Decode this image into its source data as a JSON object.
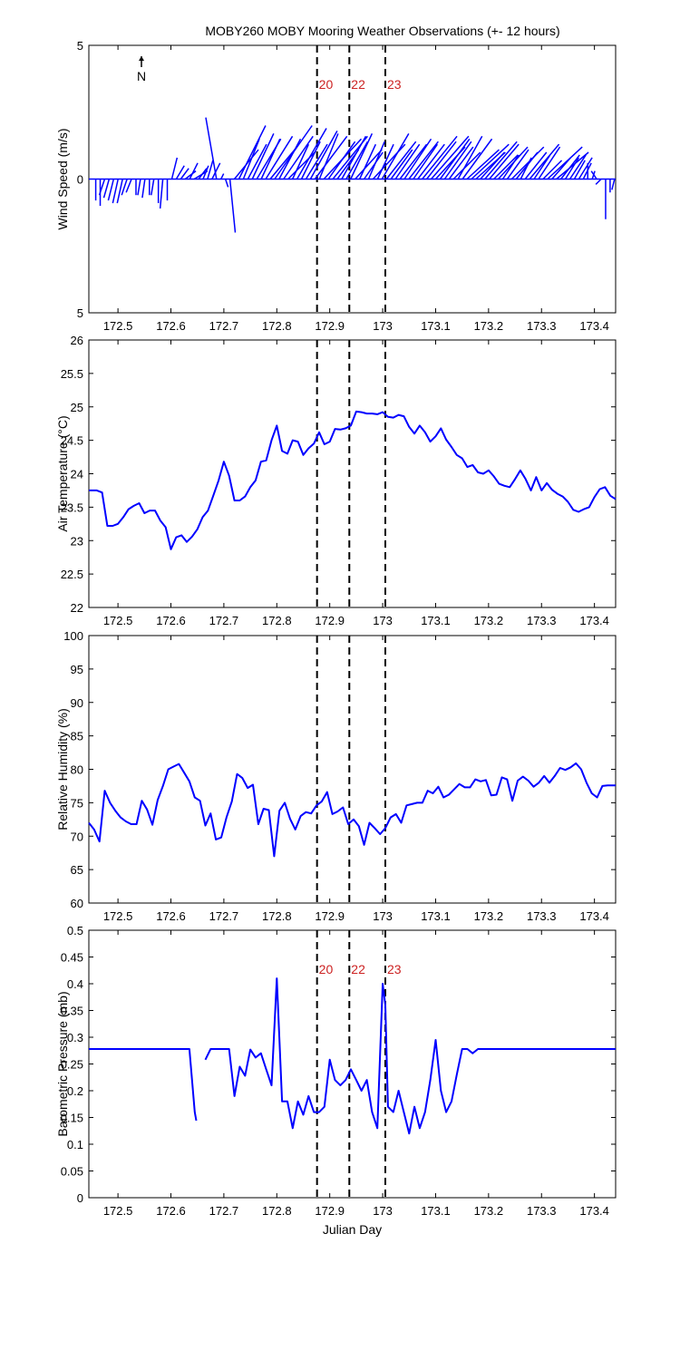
{
  "title": "MOBY260 MOBY Mooring Weather Observations (+- 12 hours)",
  "colors": {
    "line": "#0000ff",
    "marker_label": "#cc2222",
    "axis": "#000000"
  },
  "chart_data": [
    {
      "type": "line",
      "subtype": "wind-stick",
      "ylabel": "Wind Speed (m/s)",
      "xlabel": "",
      "xlim": [
        172.445,
        173.44
      ],
      "ylim": [
        -5,
        5
      ],
      "yticks": [
        {
          "value": 5,
          "label": "5"
        },
        {
          "value": 0,
          "label": "0"
        },
        {
          "value": -5,
          "label": "5"
        }
      ],
      "xticks": [
        "172.5",
        "172.6",
        "172.7",
        "172.8",
        "172.9",
        "173",
        "173.1",
        "173.2",
        "173.3",
        "173.4"
      ],
      "north_label": "N",
      "marker_labels": [
        "20",
        "22",
        "23"
      ],
      "series": [
        {
          "u": [
            0.0,
            0.0,
            -0.2,
            -0.2,
            -0.2,
            -0.2,
            -0.2,
            -0.2,
            -0.2,
            0.0,
            -0.1,
            -0.1,
            0.0,
            -0.1,
            0.0,
            -0.1,
            0.0,
            0.2,
            0.3,
            0.3,
            0.4,
            0.3,
            0.5,
            0.3,
            0.2,
            0.2,
            0.3,
            -0.4,
            0.1,
            0.1,
            0.2,
            0.9,
            1.0,
            0.6,
            0.7,
            0.8,
            0.9,
            0.7,
            1.0,
            1.0,
            1.4,
            0.8,
            1.1,
            1.0,
            0.6,
            1.1,
            0.7,
            0.8,
            1.0,
            1.2,
            0.7,
            1.4,
            1.0,
            1.3,
            0.8,
            0.9,
            0.8,
            0.8,
            1.0,
            0.6,
            0.7,
            0.6,
            1.2,
            0.6,
            1.0,
            1.1,
            0.8,
            0.9,
            1.0,
            1.0,
            1.1,
            0.9,
            1.0,
            1.3,
            1.1,
            1.4,
            1.1,
            1.1,
            1.0,
            0.9,
            1.0,
            0.9,
            1.1,
            1.2,
            1.4,
            1.1,
            0.9,
            1.2,
            1.1,
            0.9,
            1.1,
            0.6,
            0.8,
            1.2,
            0.8,
            0.4,
            0.8,
            1.1,
            0.6,
            0.8,
            0.7,
            1.3,
            0.7,
            1.2,
            0.7,
            0.5,
            0.6,
            0.4,
            0.5,
            0.3,
            0.0,
            0.1,
            -0.2,
            -0.2,
            0.0,
            0.0,
            -0.1
          ],
          "v": [
            -0.8,
            -1.0,
            -0.6,
            -0.7,
            -0.8,
            -0.9,
            -0.9,
            -0.6,
            -0.5,
            -0.6,
            -0.6,
            -0.7,
            -0.6,
            -0.6,
            -0.9,
            -1.1,
            -0.8,
            0.8,
            0.5,
            0.4,
            0.3,
            0.6,
            0.3,
            0.4,
            0.5,
            0.7,
            0.6,
            2.3,
            0.2,
            -0.3,
            -2.0,
            1.1,
            2.0,
            1.5,
            1.3,
            1.7,
            1.5,
            1.5,
            1.6,
            1.2,
            2.0,
            1.5,
            1.6,
            1.0,
            1.3,
            1.9,
            1.4,
            1.3,
            1.8,
            1.6,
            1.7,
            1.5,
            1.4,
            1.6,
            1.1,
            1.6,
            1.4,
            1.7,
            1.1,
            1.3,
            1.0,
            1.4,
            1.3,
            1.3,
            1.7,
            1.4,
            1.1,
            1.3,
            1.3,
            1.5,
            1.4,
            1.3,
            1.3,
            1.6,
            1.4,
            1.6,
            1.2,
            1.5,
            1.4,
            1.2,
            1.0,
            1.6,
            1.5,
            1.1,
            1.3,
            1.0,
            1.0,
            1.4,
            1.3,
            0.9,
            1.2,
            0.9,
            1.1,
            1.2,
            1.0,
            0.8,
            1.0,
            1.3,
            0.9,
            1.2,
            0.7,
            1.2,
            0.8,
            1.0,
            0.9,
            0.8,
            0.9,
            0.7,
            0.8,
            0.6,
            0.6,
            0.3,
            0.3,
            -0.2,
            -1.5,
            -0.5,
            -0.4
          ]
        }
      ],
      "time_start": 172.458,
      "time_end": 173.438,
      "grid": false
    },
    {
      "type": "line",
      "ylabel": "Air Temperature (°C)",
      "xlabel": "",
      "xlim": [
        172.445,
        173.44
      ],
      "ylim": [
        22,
        26
      ],
      "yticks": [
        "22",
        "22.5",
        "23",
        "23.5",
        "24",
        "24.5",
        "25",
        "25.5",
        "26"
      ],
      "xticks": [
        "172.5",
        "172.6",
        "172.7",
        "172.8",
        "172.9",
        "173",
        "173.1",
        "173.2",
        "173.3",
        "173.4"
      ],
      "series": [
        {
          "x": [
            172.445,
            172.46,
            172.47,
            172.48,
            172.49,
            172.5,
            172.51,
            172.52,
            172.53,
            172.54,
            172.55,
            172.56,
            172.57,
            172.58,
            172.59,
            172.6,
            172.61,
            172.62,
            172.63,
            172.64,
            172.65,
            172.66,
            172.67,
            172.68,
            172.69,
            172.7,
            172.71,
            172.72,
            172.73,
            172.74,
            172.75,
            172.76,
            172.77,
            172.78,
            172.79,
            172.8,
            172.81,
            172.82,
            172.83,
            172.84,
            172.85,
            172.86,
            172.87,
            172.88,
            172.89,
            172.9,
            172.91,
            172.92,
            172.93,
            172.94,
            172.95,
            172.96,
            172.97,
            172.98,
            172.99,
            173.0,
            173.01,
            173.02,
            173.03,
            173.04,
            173.05,
            173.06,
            173.07,
            173.08,
            173.09,
            173.1,
            173.11,
            173.12,
            173.13,
            173.14,
            173.15,
            173.16,
            173.17,
            173.18,
            173.19,
            173.2,
            173.21,
            173.22,
            173.23,
            173.24,
            173.25,
            173.26,
            173.27,
            173.28,
            173.29,
            173.3,
            173.31,
            173.32,
            173.33,
            173.34,
            173.35,
            173.36,
            173.37,
            173.38,
            173.39,
            173.4,
            173.41,
            173.42,
            173.43,
            173.44
          ],
          "y": [
            23.75,
            23.75,
            23.72,
            23.22,
            23.22,
            23.25,
            23.35,
            23.47,
            23.52,
            23.56,
            23.41,
            23.45,
            23.45,
            23.3,
            23.2,
            22.87,
            23.05,
            23.08,
            22.98,
            23.06,
            23.17,
            23.35,
            23.45,
            23.67,
            23.9,
            24.18,
            23.97,
            23.6,
            23.6,
            23.66,
            23.8,
            23.9,
            24.18,
            24.2,
            24.5,
            24.72,
            24.34,
            24.3,
            24.5,
            24.48,
            24.28,
            24.38,
            24.45,
            24.62,
            24.44,
            24.48,
            24.67,
            24.66,
            24.68,
            24.72,
            24.93,
            24.92,
            24.9,
            24.9,
            24.89,
            24.92,
            24.85,
            24.84,
            24.88,
            24.86,
            24.7,
            24.6,
            24.72,
            24.62,
            24.48,
            24.56,
            24.68,
            24.51,
            24.4,
            24.28,
            24.23,
            24.1,
            24.13,
            24.02,
            24.0,
            24.05,
            23.96,
            23.85,
            23.82,
            23.8,
            23.92,
            24.05,
            23.92,
            23.75,
            23.95,
            23.75,
            23.86,
            23.76,
            23.7,
            23.66,
            23.58,
            23.46,
            23.43,
            23.47,
            23.5,
            23.65,
            23.77,
            23.8,
            23.67,
            23.62
          ]
        }
      ],
      "grid": false
    },
    {
      "type": "line",
      "ylabel": "Relative Humidity (%)",
      "xlabel": "",
      "xlim": [
        172.445,
        173.44
      ],
      "ylim": [
        60,
        100
      ],
      "yticks": [
        "60",
        "65",
        "70",
        "75",
        "80",
        "85",
        "90",
        "95",
        "100"
      ],
      "xticks": [
        "172.5",
        "172.6",
        "172.7",
        "172.8",
        "172.9",
        "173",
        "173.1",
        "173.2",
        "173.3",
        "173.4"
      ],
      "series": [
        {
          "x": [
            172.445,
            172.455,
            172.465,
            172.475,
            172.485,
            172.495,
            172.505,
            172.515,
            172.525,
            172.535,
            172.545,
            172.555,
            172.565,
            172.575,
            172.585,
            172.595,
            172.605,
            172.615,
            172.625,
            172.635,
            172.645,
            172.655,
            172.665,
            172.675,
            172.685,
            172.695,
            172.705,
            172.715,
            172.725,
            172.735,
            172.745,
            172.755,
            172.765,
            172.775,
            172.785,
            172.795,
            172.805,
            172.815,
            172.825,
            172.835,
            172.845,
            172.855,
            172.865,
            172.875,
            172.885,
            172.895,
            172.905,
            172.915,
            172.925,
            172.935,
            172.945,
            172.955,
            172.965,
            172.975,
            172.985,
            172.995,
            173.005,
            173.015,
            173.025,
            173.035,
            173.045,
            173.055,
            173.065,
            173.075,
            173.085,
            173.095,
            173.105,
            173.115,
            173.125,
            173.135,
            173.145,
            173.155,
            173.165,
            173.175,
            173.185,
            173.195,
            173.205,
            173.215,
            173.225,
            173.235,
            173.245,
            173.255,
            173.265,
            173.275,
            173.285,
            173.295,
            173.305,
            173.315,
            173.325,
            173.335,
            173.345,
            173.355,
            173.365,
            173.375,
            173.385,
            173.395,
            173.405,
            173.415,
            173.425,
            173.435,
            173.44
          ],
          "y": [
            72.0,
            71.0,
            69.2,
            76.8,
            75.0,
            73.8,
            72.8,
            72.2,
            71.8,
            71.8,
            75.3,
            74.0,
            71.7,
            75.4,
            77.5,
            80.0,
            80.4,
            80.8,
            79.5,
            78.2,
            75.8,
            75.3,
            71.6,
            73.4,
            69.5,
            69.8,
            72.8,
            75.2,
            79.3,
            78.7,
            77.2,
            77.7,
            71.8,
            74.1,
            73.9,
            67.0,
            73.8,
            75.0,
            72.6,
            71.0,
            73.0,
            73.6,
            73.4,
            74.6,
            75.2,
            76.6,
            73.3,
            73.7,
            74.3,
            71.8,
            72.5,
            71.5,
            68.7,
            72.0,
            71.2,
            70.3,
            71.2,
            72.8,
            73.3,
            72.0,
            74.6,
            74.8,
            75.0,
            75.0,
            76.8,
            76.4,
            77.4,
            75.8,
            76.2,
            77.0,
            77.8,
            77.3,
            77.3,
            78.5,
            78.2,
            78.4,
            76.1,
            76.2,
            78.8,
            78.5,
            75.3,
            78.3,
            78.9,
            78.3,
            77.4,
            78.0,
            79.0,
            78.0,
            79.0,
            80.2,
            79.9,
            80.3,
            80.9,
            80.0,
            78.0,
            76.4,
            75.8,
            77.5,
            77.6,
            77.6,
            77.6
          ]
        }
      ],
      "grid": false
    },
    {
      "type": "line",
      "ylabel": "Barometric Pressure (mb)",
      "xlabel": "Julian Day",
      "xlim": [
        172.445,
        173.44
      ],
      "ylim": [
        0,
        0.5
      ],
      "yticks": [
        "0",
        "0.05",
        "0.1",
        "0.15",
        "0.2",
        "0.25",
        "0.3",
        "0.35",
        "0.4",
        "0.45",
        "0.5"
      ],
      "xticks": [
        "172.5",
        "172.6",
        "172.7",
        "172.8",
        "172.9",
        "173",
        "173.1",
        "173.2",
        "173.3",
        "173.4"
      ],
      "marker_labels": [
        "20",
        "22",
        "23"
      ],
      "series": [
        {
          "x": [
            172.445,
            172.55,
            172.635,
            172.645,
            172.648
          ],
          "y": [
            0.278,
            0.278,
            0.278,
            0.16,
            0.144
          ]
        },
        {
          "x": [
            172.665,
            172.675,
            172.71,
            172.72,
            172.73,
            172.74,
            172.75,
            172.76,
            172.77,
            172.78,
            172.79,
            172.8,
            172.81,
            172.82,
            172.83,
            172.84,
            172.85,
            172.86,
            172.87,
            172.88,
            172.89,
            172.9,
            172.91,
            172.92,
            172.93,
            172.94,
            172.95,
            172.96,
            172.97,
            172.98,
            172.99,
            173.0,
            173.005,
            173.01,
            173.02,
            173.03,
            173.04,
            173.05,
            173.06,
            173.07,
            173.08,
            173.09,
            173.1,
            173.11,
            173.12,
            173.13,
            173.14,
            173.15,
            173.16,
            173.17,
            173.18,
            173.19,
            173.2,
            173.44
          ],
          "y": [
            0.258,
            0.278,
            0.278,
            0.19,
            0.245,
            0.228,
            0.277,
            0.262,
            0.27,
            0.24,
            0.21,
            0.41,
            0.18,
            0.18,
            0.13,
            0.18,
            0.155,
            0.19,
            0.16,
            0.16,
            0.17,
            0.258,
            0.22,
            0.21,
            0.22,
            0.24,
            0.22,
            0.2,
            0.22,
            0.16,
            0.13,
            0.4,
            0.36,
            0.17,
            0.16,
            0.2,
            0.16,
            0.12,
            0.17,
            0.13,
            0.16,
            0.22,
            0.295,
            0.2,
            0.16,
            0.18,
            0.23,
            0.278,
            0.278,
            0.27,
            0.278,
            0.278,
            0.278,
            0.278
          ]
        }
      ],
      "grid": false
    }
  ],
  "event_lines": [
    172.876,
    172.937,
    173.005
  ]
}
